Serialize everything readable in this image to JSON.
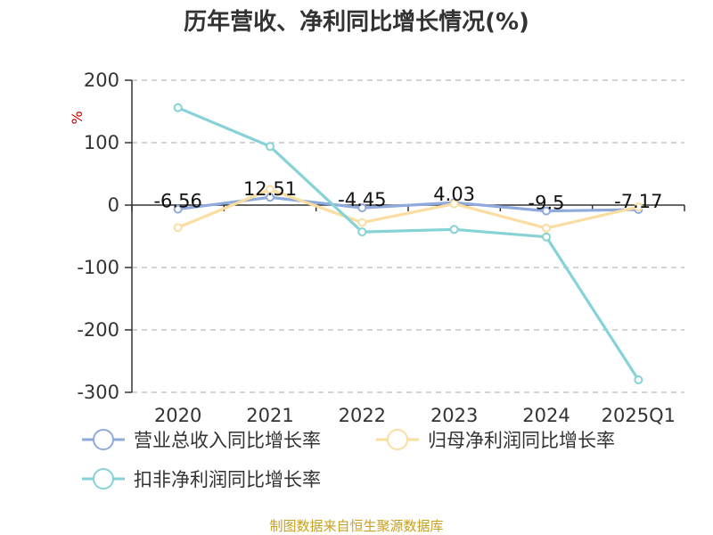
{
  "chart_data": {
    "type": "line",
    "title": "历年营收、净利同比增长情况(%)",
    "ylabel": "%",
    "categories": [
      "2020",
      "2021",
      "2022",
      "2023",
      "2024",
      "2025Q1"
    ],
    "ylim": [
      -300,
      200
    ],
    "yticks": [
      200,
      100,
      0,
      -100,
      -200,
      -300
    ],
    "grid": true,
    "legend_position": "bottom",
    "series": [
      {
        "name": "营业总收入同比增长率",
        "values": [
          -6.56,
          12.51,
          -4.45,
          4.03,
          -9.5,
          -7.17
        ],
        "color": "#8FAADC",
        "labels": [
          "-6.56",
          "12.51",
          "-4.45",
          "4.03",
          "-9.5",
          "-7.17"
        ]
      },
      {
        "name": "归母净利润同比增长率",
        "values": [
          -36,
          25,
          -28,
          2,
          -37,
          -3
        ],
        "color": "#FADDA0"
      },
      {
        "name": "扣非净利润同比增长率",
        "values": [
          156,
          94,
          -43,
          -39,
          -51,
          -280
        ],
        "color": "#87D2D6"
      }
    ]
  },
  "source_text": "制图数据来自恒生聚源数据库",
  "colors": {
    "axis": "#333333",
    "grid": "#bbbbbb",
    "unit": "#cc0000",
    "source": "#C8A020"
  }
}
